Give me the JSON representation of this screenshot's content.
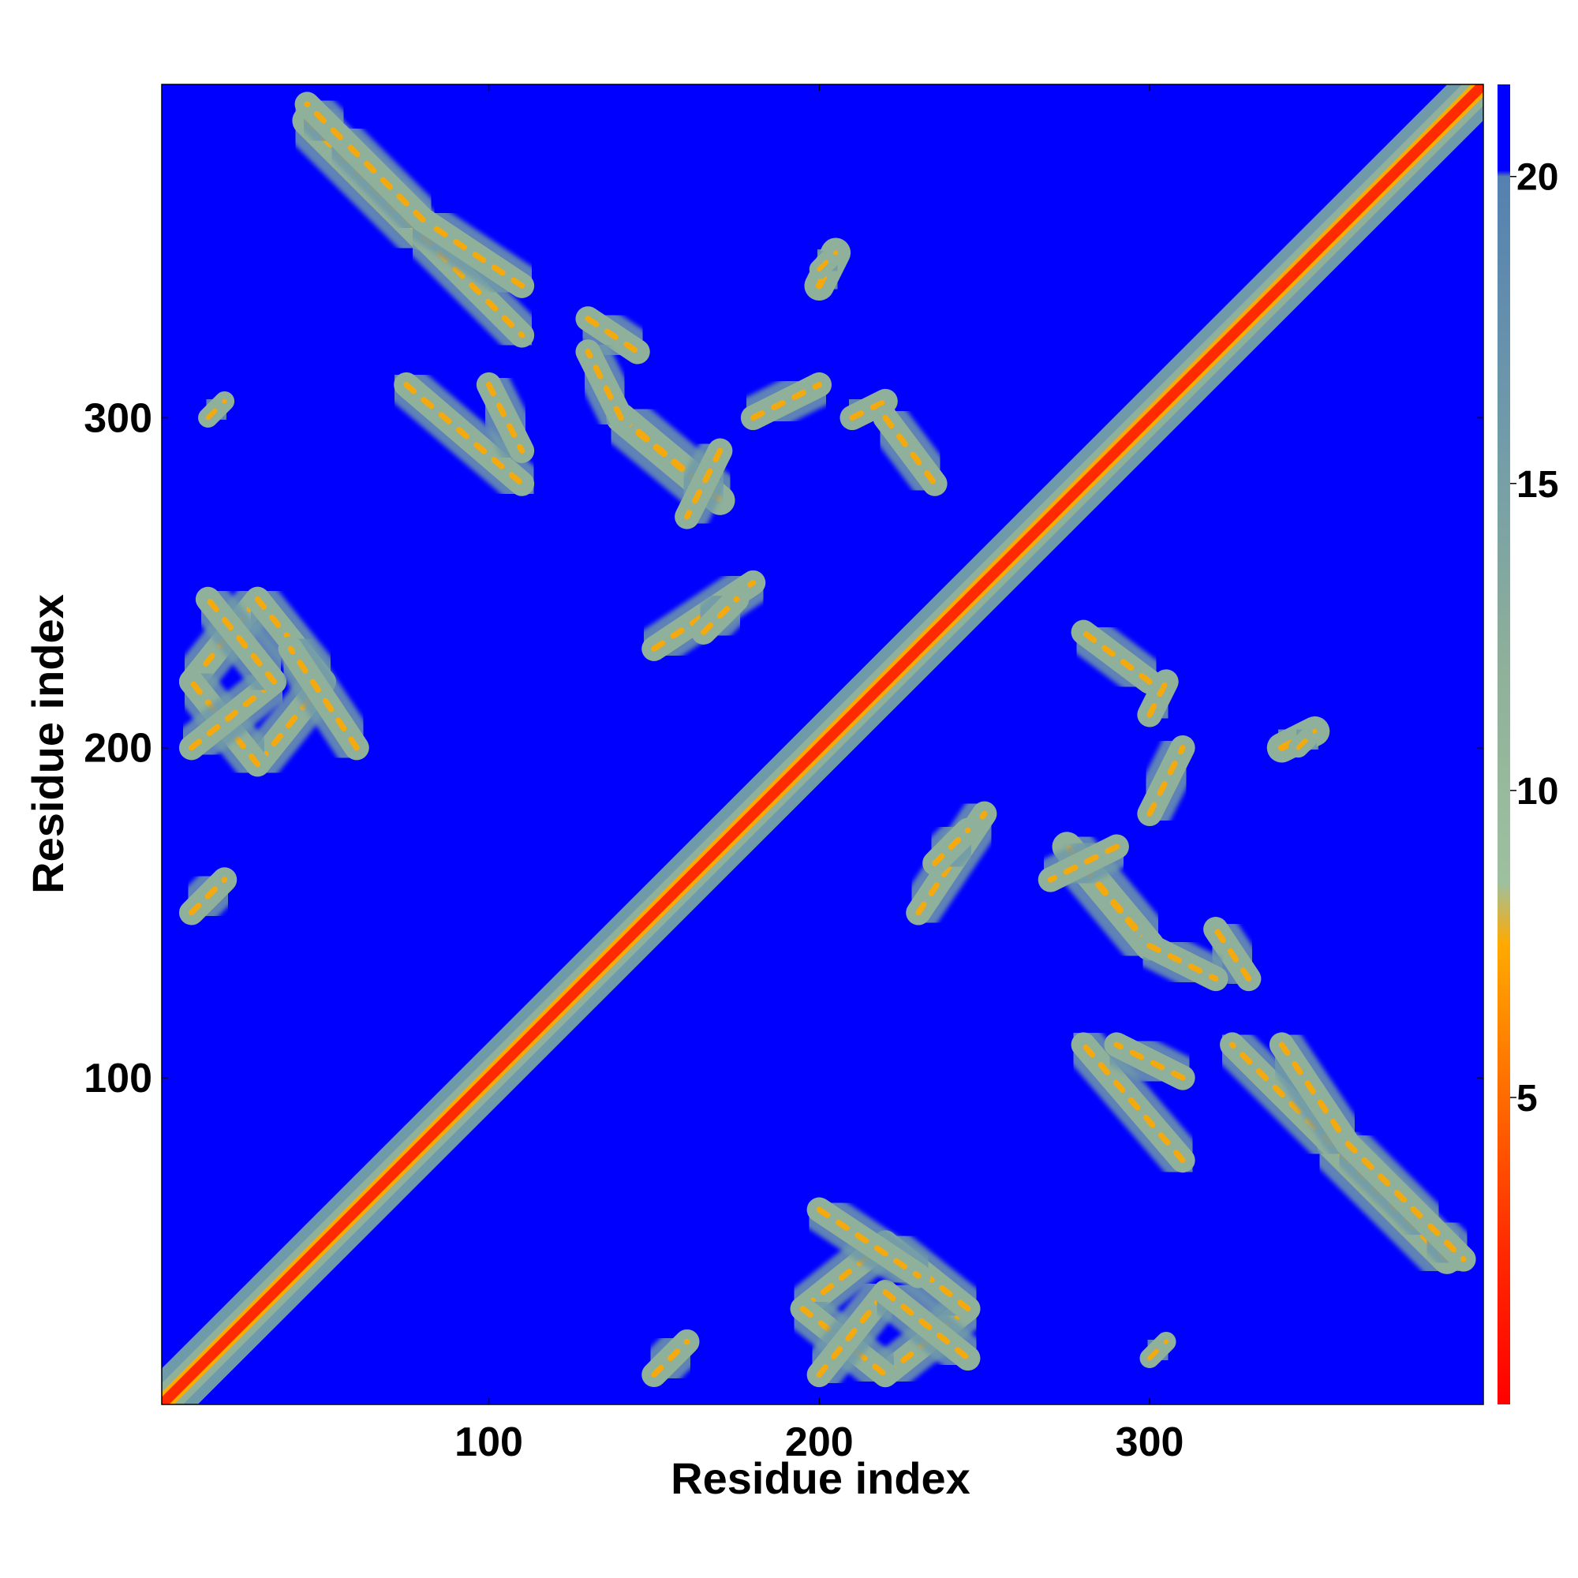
{
  "chart_data": {
    "type": "heatmap",
    "title": "",
    "xlabel": "Residue index",
    "ylabel": "Residue index",
    "xlim": [
      1,
      401
    ],
    "ylim": [
      1,
      401
    ],
    "x_ticks": [
      100,
      200,
      300
    ],
    "y_ticks": [
      100,
      200,
      300
    ],
    "colorbar": {
      "range": [
        0,
        21.5
      ],
      "ticks": [
        5,
        10,
        15,
        20
      ],
      "tick_labels": [
        "5",
        "10",
        "15",
        "20"
      ],
      "stops": [
        {
          "value": 0,
          "color": "#ff0000"
        },
        {
          "value": 2.5,
          "color": "#ff2a00"
        },
        {
          "value": 5,
          "color": "#ff6a00"
        },
        {
          "value": 7.5,
          "color": "#ffaa00"
        },
        {
          "value": 8.5,
          "color": "#9fc09f"
        },
        {
          "value": 12,
          "color": "#8fb09a"
        },
        {
          "value": 16,
          "color": "#6f9aaa"
        },
        {
          "value": 20,
          "color": "#5580b0"
        },
        {
          "value": 20.1,
          "color": "#0000ff"
        },
        {
          "value": 21.5,
          "color": "#0000ff"
        }
      ]
    },
    "background_value": 21.5,
    "symmetric": true,
    "diagonal": {
      "from": [
        1,
        1
      ],
      "to": [
        401,
        401
      ],
      "core_value": 1,
      "halo_width_residues": 7
    },
    "contact_bands": [
      {
        "from": [
          10,
          220
        ],
        "to": [
          30,
          245
        ],
        "width": 5
      },
      {
        "from": [
          30,
          245
        ],
        "to": [
          50,
          220
        ],
        "width": 5
      },
      {
        "from": [
          50,
          220
        ],
        "to": [
          30,
          195
        ],
        "width": 5
      },
      {
        "from": [
          30,
          195
        ],
        "to": [
          10,
          220
        ],
        "width": 5
      },
      {
        "from": [
          45,
          390
        ],
        "to": [
          80,
          355
        ],
        "width": 6
      },
      {
        "from": [
          80,
          355
        ],
        "to": [
          110,
          325
        ],
        "width": 5
      },
      {
        "from": [
          75,
          310
        ],
        "to": [
          110,
          280
        ],
        "width": 5
      },
      {
        "from": [
          130,
          330
        ],
        "to": [
          145,
          320
        ],
        "width": 5
      },
      {
        "from": [
          140,
          300
        ],
        "to": [
          170,
          275
        ],
        "width": 6
      },
      {
        "from": [
          150,
          230
        ],
        "to": [
          180,
          250
        ],
        "width": 5
      },
      {
        "from": [
          200,
          340
        ],
        "to": [
          205,
          350
        ],
        "width": 6
      },
      {
        "from": [
          210,
          300
        ],
        "to": [
          220,
          305
        ],
        "width": 5
      },
      {
        "from": [
          310,
          100
        ],
        "to": [
          290,
          110
        ],
        "width": 5
      },
      {
        "from": [
          290,
          170
        ],
        "to": [
          270,
          160
        ],
        "width": 5
      },
      {
        "from": [
          300,
          140
        ],
        "to": [
          320,
          130
        ],
        "width": 5
      },
      {
        "from": [
          340,
          110
        ],
        "to": [
          360,
          80
        ],
        "width": 5
      },
      {
        "from": [
          360,
          80
        ],
        "to": [
          385,
          55
        ],
        "width": 5
      },
      {
        "from": [
          385,
          55
        ],
        "to": [
          395,
          45
        ],
        "width": 5
      },
      {
        "from": [
          200,
          10
        ],
        "to": [
          220,
          35
        ],
        "width": 5
      },
      {
        "from": [
          220,
          35
        ],
        "to": [
          245,
          15
        ],
        "width": 5
      },
      {
        "from": [
          200,
          60
        ],
        "to": [
          230,
          40
        ],
        "width": 5
      },
      {
        "from": [
          300,
          220
        ],
        "to": [
          280,
          235
        ],
        "width": 5
      },
      {
        "from": [
          10,
          150
        ],
        "to": [
          20,
          160
        ],
        "width": 5
      },
      {
        "from": [
          15,
          300
        ],
        "to": [
          20,
          305
        ],
        "width": 4
      },
      {
        "from": [
          235,
          165
        ],
        "to": [
          245,
          175
        ],
        "width": 5
      },
      {
        "from": [
          300,
          180
        ],
        "to": [
          310,
          200
        ],
        "width": 5
      },
      {
        "from": [
          345,
          200
        ],
        "to": [
          350,
          205
        ],
        "width": 4
      }
    ]
  }
}
